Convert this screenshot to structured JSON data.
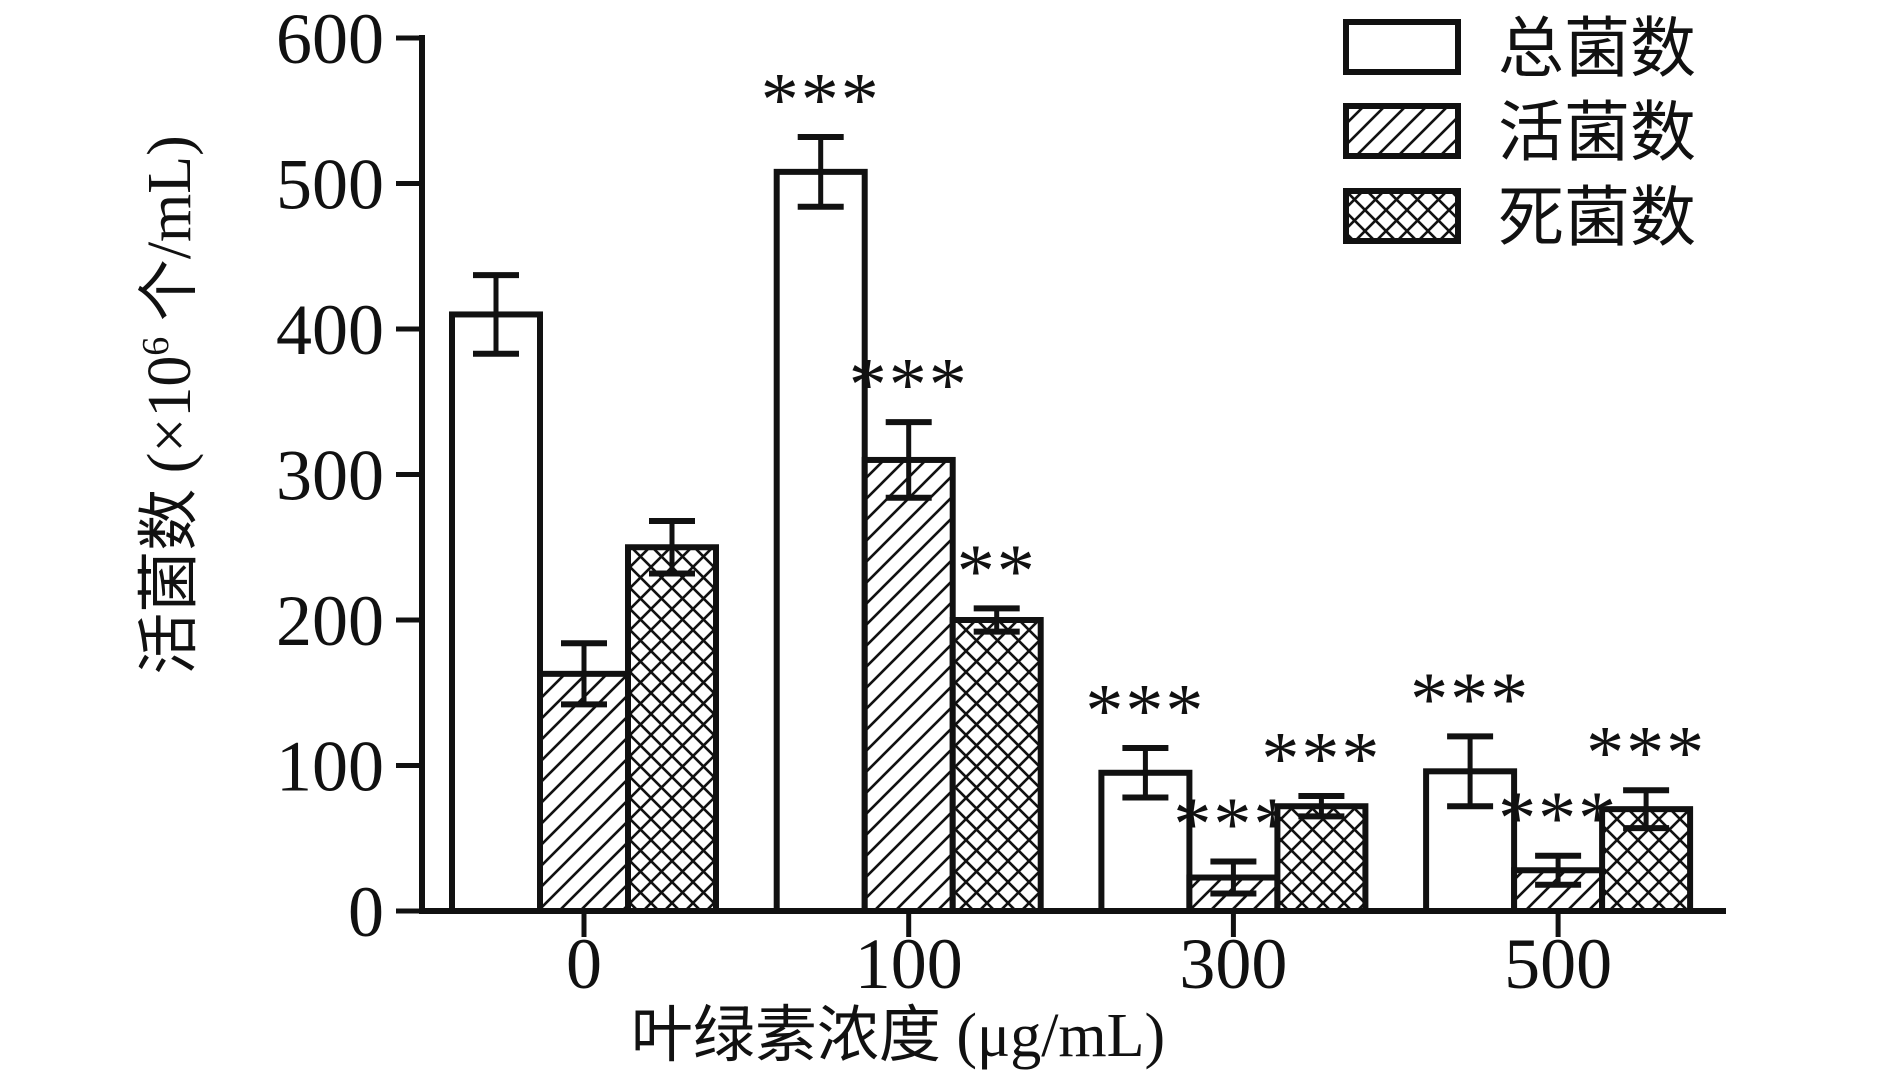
{
  "chart_data": {
    "type": "bar",
    "title": "",
    "xlabel": "叶绿素浓度 (μg/mL)",
    "ylabel": {
      "text": "活菌数 (×10⁶ 个/mL)",
      "prefix": "活菌数 (×10",
      "superscript": "6",
      "suffix": " 个/mL)"
    },
    "categories": [
      "0",
      "100",
      "300",
      "500"
    ],
    "y_ticks": [
      0,
      100,
      200,
      300,
      400,
      500,
      600
    ],
    "ylim": [
      0,
      600
    ],
    "grid": false,
    "legend_position": "top-right",
    "series": [
      {
        "name": "总菌数",
        "pattern": "solid",
        "values": [
          410,
          508,
          95,
          96
        ],
        "errors": [
          27,
          24,
          17,
          24
        ],
        "significance": [
          "",
          "***",
          "***",
          "***"
        ]
      },
      {
        "name": "活菌数",
        "pattern": "diagonal-hatch",
        "values": [
          163,
          310,
          23,
          28
        ],
        "errors": [
          21,
          26,
          11,
          10
        ],
        "significance": [
          "",
          "***",
          "***",
          "***"
        ]
      },
      {
        "name": "死菌数",
        "pattern": "crosshatch",
        "values": [
          250,
          200,
          72,
          70
        ],
        "errors": [
          18,
          8,
          7,
          13
        ],
        "significance": [
          "",
          "**",
          "***",
          "***"
        ]
      }
    ],
    "colors": {
      "stroke": "#111111",
      "bar_fill": "#ffffff",
      "background": "#ffffff"
    }
  }
}
